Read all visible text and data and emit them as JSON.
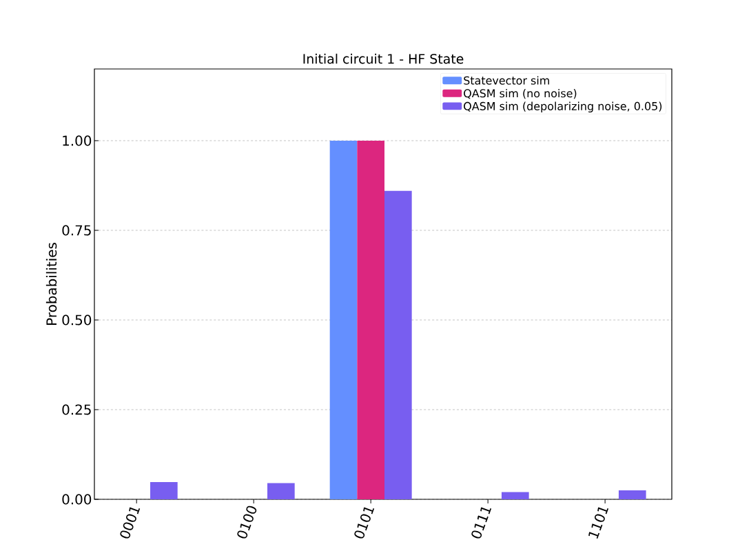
{
  "chart_data": {
    "type": "bar",
    "title": "Initial circuit 1 - HF State",
    "ylabel": "Probabilities",
    "categories": [
      "0001",
      "0100",
      "0101",
      "0111",
      "1101"
    ],
    "series": [
      {
        "name": "Statevector sim",
        "color": "#648fff",
        "values": [
          0,
          0,
          1.0,
          0,
          0
        ]
      },
      {
        "name": "QASM sim (no noise)",
        "color": "#dc267f",
        "values": [
          0,
          0,
          1.0,
          0,
          0
        ]
      },
      {
        "name": "QASM sim (depolarizing noise, 0.05)",
        "color": "#785ef0",
        "values": [
          0.048,
          0.045,
          0.86,
          0.02,
          0.025
        ]
      }
    ],
    "ylim": [
      0,
      1.2
    ],
    "yticks": [
      {
        "value": 0,
        "label": "0.00"
      },
      {
        "value": 0.25,
        "label": "0.25"
      },
      {
        "value": 0.5,
        "label": "0.50"
      },
      {
        "value": 0.75,
        "label": "0.75"
      },
      {
        "value": 1.0,
        "label": "1.00"
      }
    ],
    "grid": "y",
    "legend": "top right"
  }
}
